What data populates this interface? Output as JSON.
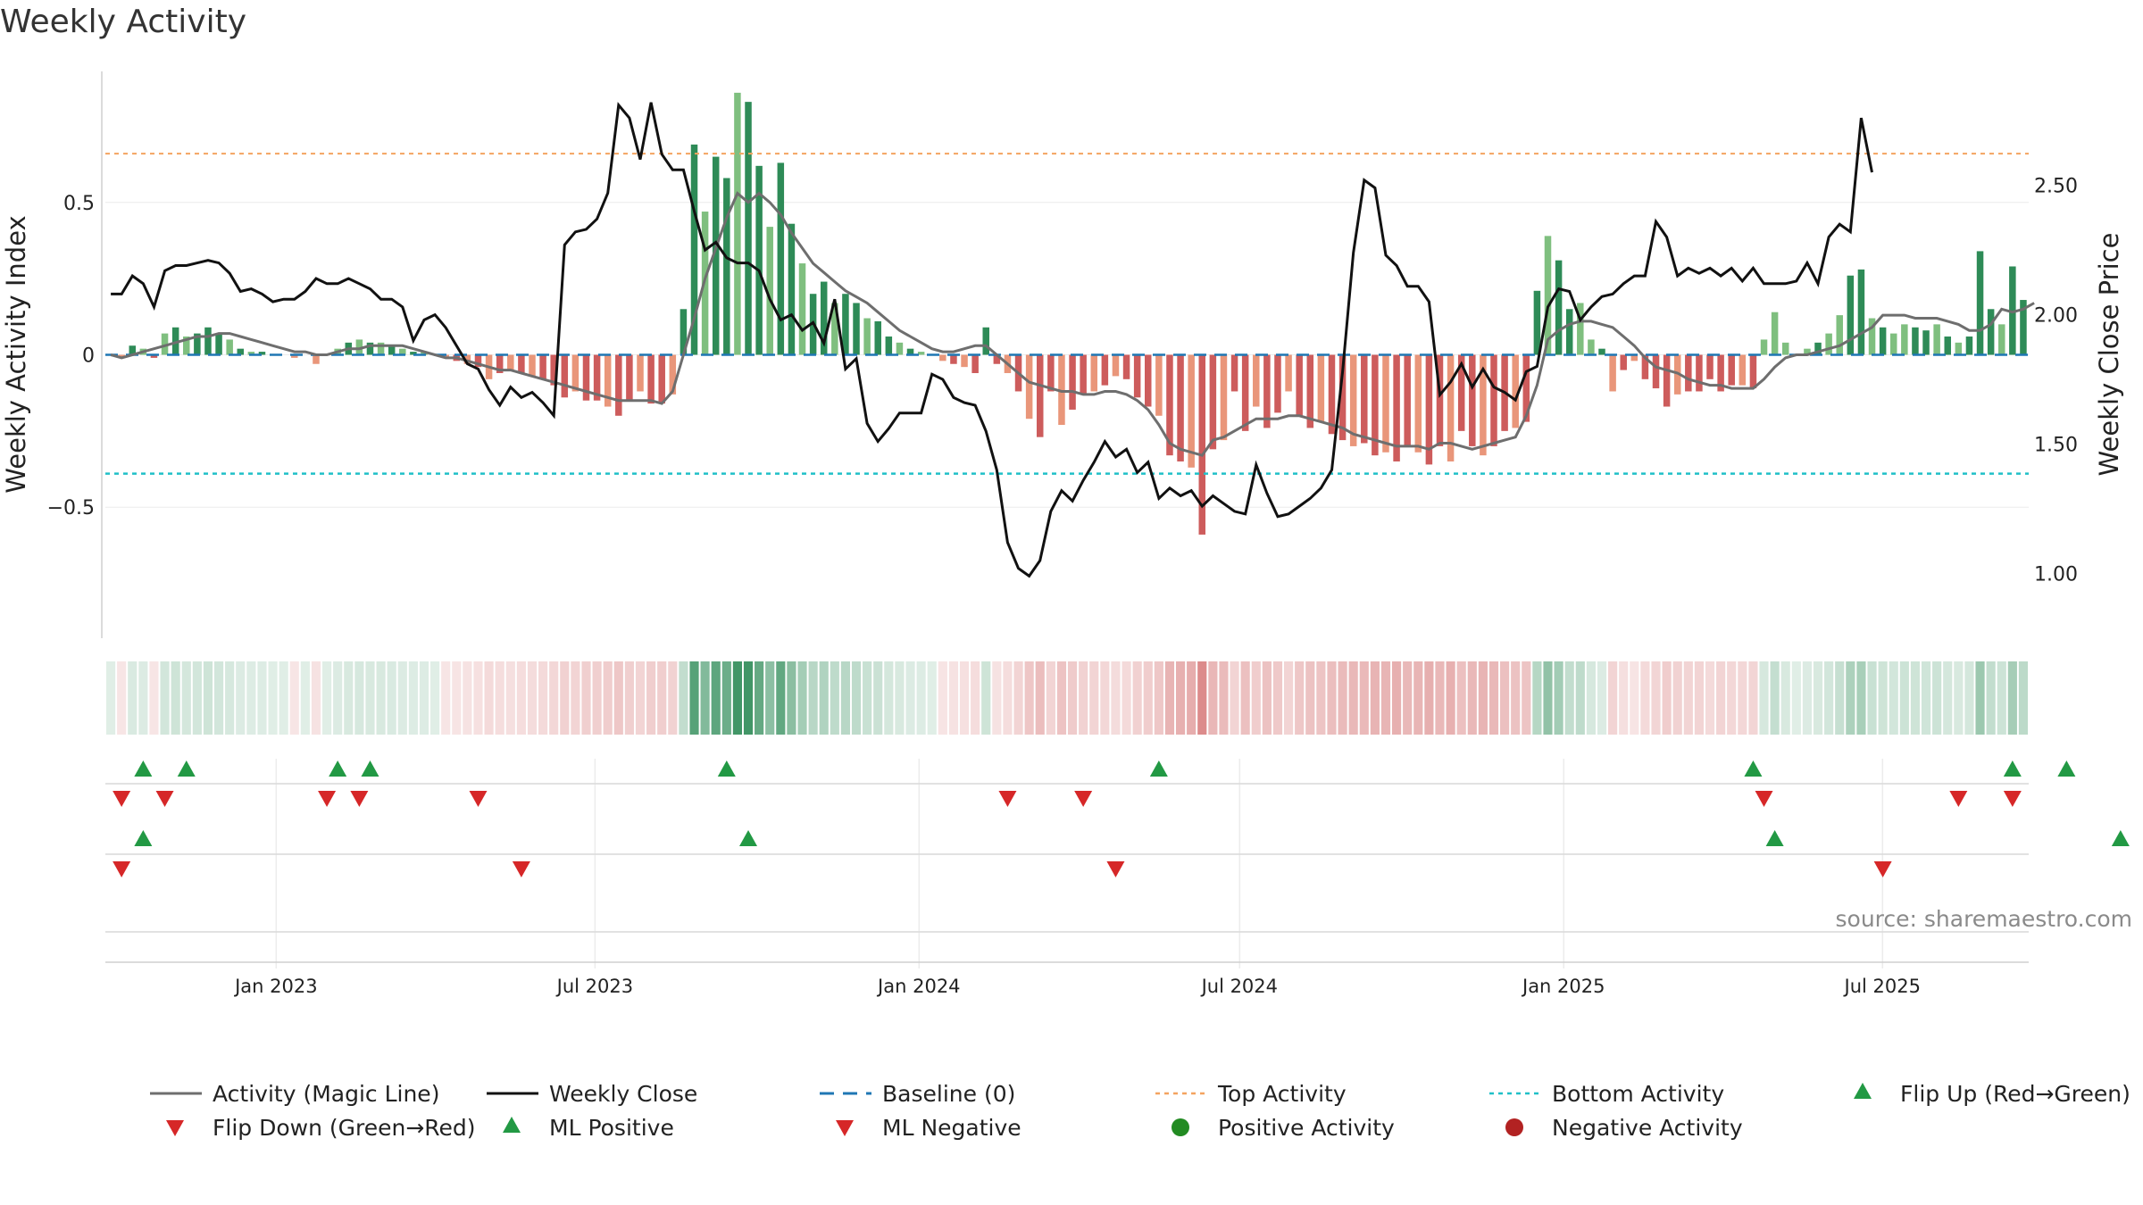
{
  "title": "Weekly Activity",
  "source": "source: sharemaestro.com",
  "chart_data": {
    "type": "bar",
    "title": "Weekly Activity",
    "ylabel_left": "Weekly Activity Index",
    "ylabel_right": "Weekly Close Price",
    "ylim_left": [
      -0.93,
      0.93
    ],
    "ylim_right": [
      0.75,
      2.94
    ],
    "yticks_left": [
      {
        "v": 0.5,
        "label": "0.5"
      },
      {
        "v": 0,
        "label": "0"
      },
      {
        "v": -0.5,
        "label": "−0.5"
      }
    ],
    "yticks_right": [
      {
        "v": 2.5,
        "label": "2.50"
      },
      {
        "v": 2.0,
        "label": "2.00"
      },
      {
        "v": 1.5,
        "label": "1.50"
      },
      {
        "v": 1.0,
        "label": "1.00"
      }
    ],
    "x_start": "2022-09-26",
    "x_end": "2025-09-22",
    "x_ticks": [
      {
        "date": "2023-01-01",
        "label": "Jan 2023"
      },
      {
        "date": "2023-07-01",
        "label": "Jul 2023"
      },
      {
        "date": "2024-01-01",
        "label": "Jan 2024"
      },
      {
        "date": "2024-07-01",
        "label": "Jul 2024"
      },
      {
        "date": "2025-01-01",
        "label": "Jan 2025"
      },
      {
        "date": "2025-07-01",
        "label": "Jul 2025"
      }
    ],
    "top_activity": 0.66,
    "bottom_activity": -0.39,
    "baseline": 0,
    "colors": {
      "pos_strong": "#2e8b57",
      "pos_light": "#7fbf7f",
      "neg_strong": "#cd5c5c",
      "neg_light": "#e9967a",
      "magic_line": "#6e6e6e",
      "close_line": "#111111",
      "baseline": "#1f77b4",
      "top": "#f4a460",
      "bottom": "#20c0c8",
      "marker_up": "#229944",
      "marker_down": "#d62728",
      "pos_dot": "#228b22",
      "neg_dot": "#b22222"
    },
    "activity": [
      0.0,
      -0.01,
      0.03,
      0.02,
      -0.01,
      0.07,
      0.09,
      0.06,
      0.07,
      0.09,
      0.07,
      0.05,
      0.02,
      0.01,
      0.01,
      0.0,
      0.0,
      -0.01,
      0.0,
      -0.03,
      0.0,
      0.02,
      0.04,
      0.05,
      0.04,
      0.04,
      0.03,
      0.02,
      0.01,
      0.01,
      0.0,
      -0.01,
      -0.02,
      -0.03,
      -0.04,
      -0.08,
      -0.06,
      -0.05,
      -0.06,
      -0.07,
      -0.08,
      -0.1,
      -0.14,
      -0.12,
      -0.15,
      -0.15,
      -0.17,
      -0.2,
      -0.15,
      -0.12,
      -0.16,
      -0.16,
      -0.13,
      0.15,
      0.69,
      0.47,
      0.65,
      0.58,
      0.86,
      0.83,
      0.62,
      0.42,
      0.63,
      0.43,
      0.3,
      0.2,
      0.24,
      0.17,
      0.2,
      0.17,
      0.12,
      0.11,
      0.06,
      0.04,
      0.02,
      0.01,
      0.0,
      -0.02,
      -0.03,
      -0.04,
      -0.06,
      0.09,
      -0.03,
      -0.06,
      -0.12,
      -0.21,
      -0.27,
      -0.12,
      -0.23,
      -0.18,
      -0.13,
      -0.12,
      -0.1,
      -0.07,
      -0.08,
      -0.14,
      -0.17,
      -0.2,
      -0.33,
      -0.35,
      -0.37,
      -0.59,
      -0.31,
      -0.28,
      -0.12,
      -0.25,
      -0.17,
      -0.24,
      -0.19,
      -0.12,
      -0.2,
      -0.24,
      -0.22,
      -0.26,
      -0.28,
      -0.3,
      -0.29,
      -0.33,
      -0.32,
      -0.35,
      -0.3,
      -0.32,
      -0.36,
      -0.3,
      -0.35,
      -0.25,
      -0.3,
      -0.33,
      -0.3,
      -0.25,
      -0.24,
      -0.22,
      0.21,
      0.39,
      0.31,
      0.15,
      0.17,
      0.05,
      0.02,
      -0.12,
      -0.05,
      -0.02,
      -0.08,
      -0.11,
      -0.17,
      -0.13,
      -0.12,
      -0.12,
      -0.08,
      -0.12,
      -0.1,
      -0.1,
      -0.11,
      0.05,
      0.14,
      0.04,
      0.0,
      0.02,
      0.04,
      0.07,
      0.13,
      0.26,
      0.28,
      0.12,
      0.09,
      0.07,
      0.1,
      0.09,
      0.08,
      0.1,
      0.06,
      0.04,
      0.06,
      0.34,
      0.15,
      0.1,
      0.29,
      0.18
    ],
    "magic_line": [
      0.0,
      -0.01,
      0.0,
      0.01,
      0.02,
      0.03,
      0.04,
      0.05,
      0.06,
      0.06,
      0.07,
      0.07,
      0.06,
      0.05,
      0.04,
      0.03,
      0.02,
      0.01,
      0.01,
      0.0,
      0.0,
      0.01,
      0.02,
      0.02,
      0.03,
      0.03,
      0.03,
      0.03,
      0.02,
      0.01,
      0.0,
      -0.01,
      -0.01,
      -0.02,
      -0.03,
      -0.04,
      -0.05,
      -0.05,
      -0.06,
      -0.07,
      -0.08,
      -0.09,
      -0.1,
      -0.11,
      -0.12,
      -0.13,
      -0.14,
      -0.15,
      -0.15,
      -0.15,
      -0.15,
      -0.16,
      -0.12,
      0.0,
      0.12,
      0.25,
      0.35,
      0.45,
      0.53,
      0.5,
      0.53,
      0.5,
      0.46,
      0.4,
      0.35,
      0.3,
      0.27,
      0.24,
      0.21,
      0.19,
      0.17,
      0.14,
      0.11,
      0.08,
      0.06,
      0.04,
      0.02,
      0.01,
      0.01,
      0.02,
      0.03,
      0.03,
      0.0,
      -0.03,
      -0.06,
      -0.09,
      -0.1,
      -0.11,
      -0.12,
      -0.12,
      -0.13,
      -0.13,
      -0.12,
      -0.12,
      -0.13,
      -0.15,
      -0.18,
      -0.23,
      -0.29,
      -0.31,
      -0.32,
      -0.33,
      -0.28,
      -0.27,
      -0.25,
      -0.23,
      -0.21,
      -0.21,
      -0.21,
      -0.2,
      -0.2,
      -0.21,
      -0.22,
      -0.23,
      -0.24,
      -0.26,
      -0.27,
      -0.28,
      -0.29,
      -0.3,
      -0.3,
      -0.3,
      -0.31,
      -0.29,
      -0.29,
      -0.3,
      -0.31,
      -0.3,
      -0.29,
      -0.28,
      -0.27,
      -0.2,
      -0.1,
      0.05,
      0.08,
      0.1,
      0.11,
      0.11,
      0.1,
      0.09,
      0.06,
      0.03,
      -0.01,
      -0.04,
      -0.05,
      -0.06,
      -0.08,
      -0.09,
      -0.1,
      -0.1,
      -0.11,
      -0.11,
      -0.11,
      -0.08,
      -0.04,
      -0.01,
      0.0,
      0.0,
      0.01,
      0.02,
      0.03,
      0.05,
      0.07,
      0.09,
      0.13,
      0.13,
      0.13,
      0.12,
      0.12,
      0.12,
      0.11,
      0.1,
      0.08,
      0.08,
      0.1,
      0.15,
      0.14,
      0.15,
      0.17
    ],
    "weekly_close": [
      2.08,
      2.08,
      2.15,
      2.12,
      2.03,
      2.17,
      2.19,
      2.19,
      2.2,
      2.21,
      2.2,
      2.16,
      2.09,
      2.1,
      2.08,
      2.05,
      2.06,
      2.06,
      2.09,
      2.14,
      2.12,
      2.12,
      2.14,
      2.12,
      2.1,
      2.06,
      2.06,
      2.03,
      1.9,
      1.98,
      2.0,
      1.95,
      1.88,
      1.81,
      1.79,
      1.71,
      1.65,
      1.72,
      1.68,
      1.7,
      1.66,
      1.61,
      2.27,
      2.32,
      2.33,
      2.37,
      2.47,
      2.81,
      2.76,
      2.6,
      2.82,
      2.62,
      2.56,
      2.56,
      2.4,
      2.25,
      2.28,
      2.22,
      2.2,
      2.2,
      2.17,
      2.06,
      1.98,
      2.0,
      1.94,
      1.97,
      1.89,
      2.06,
      1.79,
      1.83,
      1.58,
      1.51,
      1.56,
      1.62,
      1.62,
      1.62,
      1.77,
      1.75,
      1.68,
      1.66,
      1.65,
      1.55,
      1.4,
      1.12,
      1.02,
      0.99,
      1.05,
      1.24,
      1.32,
      1.28,
      1.36,
      1.43,
      1.51,
      1.45,
      1.48,
      1.39,
      1.43,
      1.29,
      1.33,
      1.3,
      1.32,
      1.26,
      1.3,
      1.27,
      1.24,
      1.23,
      1.42,
      1.31,
      1.22,
      1.23,
      1.26,
      1.29,
      1.33,
      1.4,
      1.78,
      2.24,
      2.52,
      2.49,
      2.23,
      2.19,
      2.11,
      2.11,
      2.05,
      1.69,
      1.74,
      1.81,
      1.72,
      1.79,
      1.72,
      1.7,
      1.67,
      1.78,
      1.8,
      2.03,
      2.1,
      2.09,
      1.98,
      2.03,
      2.07,
      2.08,
      2.12,
      2.15,
      2.15,
      2.36,
      2.3,
      2.15,
      2.18,
      2.16,
      2.18,
      2.15,
      2.18,
      2.13,
      2.18,
      2.12,
      2.12,
      2.12,
      2.13,
      2.2,
      2.12,
      2.3,
      2.35,
      2.32,
      2.76,
      2.55
    ],
    "ml_markers": {
      "flip_up": [
        3,
        7,
        21,
        24,
        57,
        97,
        152,
        176,
        181
      ],
      "flip_down": [
        1,
        5,
        20,
        23,
        34,
        83,
        90,
        153,
        171,
        176
      ],
      "ml_positive": [
        3,
        59,
        154,
        186
      ],
      "ml_negative": [
        1,
        38,
        93,
        164
      ]
    },
    "legend": [
      {
        "label": "Activity (Magic Line)",
        "kind": "line",
        "color": "#6e6e6e"
      },
      {
        "label": "Weekly Close",
        "kind": "line",
        "color": "#111111"
      },
      {
        "label": "Baseline (0)",
        "kind": "dash",
        "color": "#1f77b4"
      },
      {
        "label": "Top Activity",
        "kind": "dot-line",
        "color": "#f4a460"
      },
      {
        "label": "Bottom Activity",
        "kind": "dot-line",
        "color": "#20c0c8"
      },
      {
        "label": "Flip Up (Red→Green)",
        "kind": "tri-up",
        "color": "#229944"
      },
      {
        "label": "Flip Down (Green→Red)",
        "kind": "tri-down",
        "color": "#d62728"
      },
      {
        "label": "ML Positive",
        "kind": "tri-up",
        "color": "#229944"
      },
      {
        "label": "ML Negative",
        "kind": "tri-down",
        "color": "#d62728"
      },
      {
        "label": "Positive Activity",
        "kind": "circle",
        "color": "#228b22"
      },
      {
        "label": "Negative Activity",
        "kind": "circle",
        "color": "#b22222"
      }
    ]
  }
}
